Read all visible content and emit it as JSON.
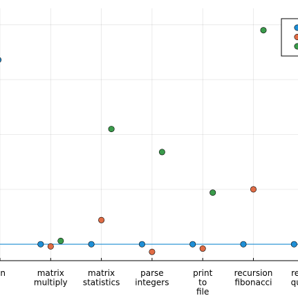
{
  "chart_data": {
    "type": "scatter",
    "categories": [
      [
        "n"
      ],
      [
        "matrix",
        "multiply"
      ],
      [
        "matrix",
        "statistics"
      ],
      [
        "parse",
        "integers"
      ],
      [
        "print",
        "to",
        "file"
      ],
      [
        "recursion",
        "fibonacci"
      ],
      [
        "recurs",
        "quicks"
      ]
    ],
    "ylim": [
      0.85,
      3.15
    ],
    "grid": true,
    "legend_position": "top-right",
    "reference_line": 1.0,
    "series": [
      {
        "color": "#1f8fd6",
        "values": [
          null,
          1.0,
          1.0,
          1.0,
          1.0,
          1.0,
          1.0
        ]
      },
      {
        "color": "#e06c45",
        "values": [
          null,
          0.98,
          1.22,
          0.93,
          0.96,
          1.5,
          1.02
        ]
      },
      {
        "color": "#3a9b4b",
        "values": [
          null,
          1.03,
          2.05,
          1.84,
          1.47,
          2.95,
          null
        ]
      }
    ],
    "partial_marks": {
      "left_edge_y": 2.68
    }
  }
}
